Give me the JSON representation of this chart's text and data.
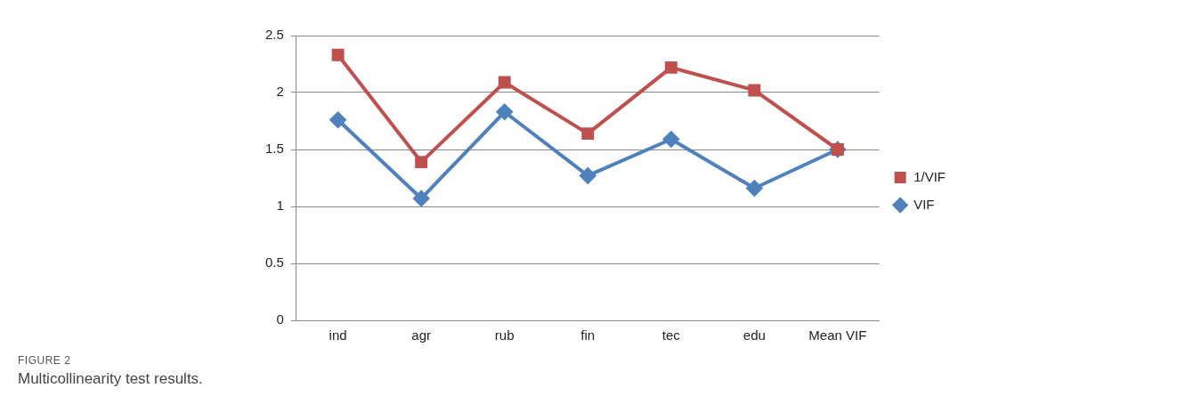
{
  "chart_data": {
    "type": "line",
    "categories": [
      "ind",
      "agr",
      "rub",
      "fin",
      "tec",
      "edu",
      "Mean VIF"
    ],
    "series": [
      {
        "name": "1/VIF",
        "color": "#c0504d",
        "marker": "square",
        "values": [
          2.33,
          1.39,
          2.09,
          1.64,
          2.22,
          2.02,
          1.5
        ]
      },
      {
        "name": "VIF",
        "color": "#4f81bd",
        "marker": "diamond",
        "values": [
          1.76,
          1.07,
          1.83,
          1.27,
          1.59,
          1.16,
          1.5
        ]
      }
    ],
    "ylim": [
      0,
      2.5
    ],
    "yticks": [
      0,
      0.5,
      1,
      1.5,
      2,
      2.5
    ],
    "grid": "y",
    "legend": "right",
    "annotations": [
      "FIGURE 2",
      "Multicollinearity test results."
    ]
  }
}
